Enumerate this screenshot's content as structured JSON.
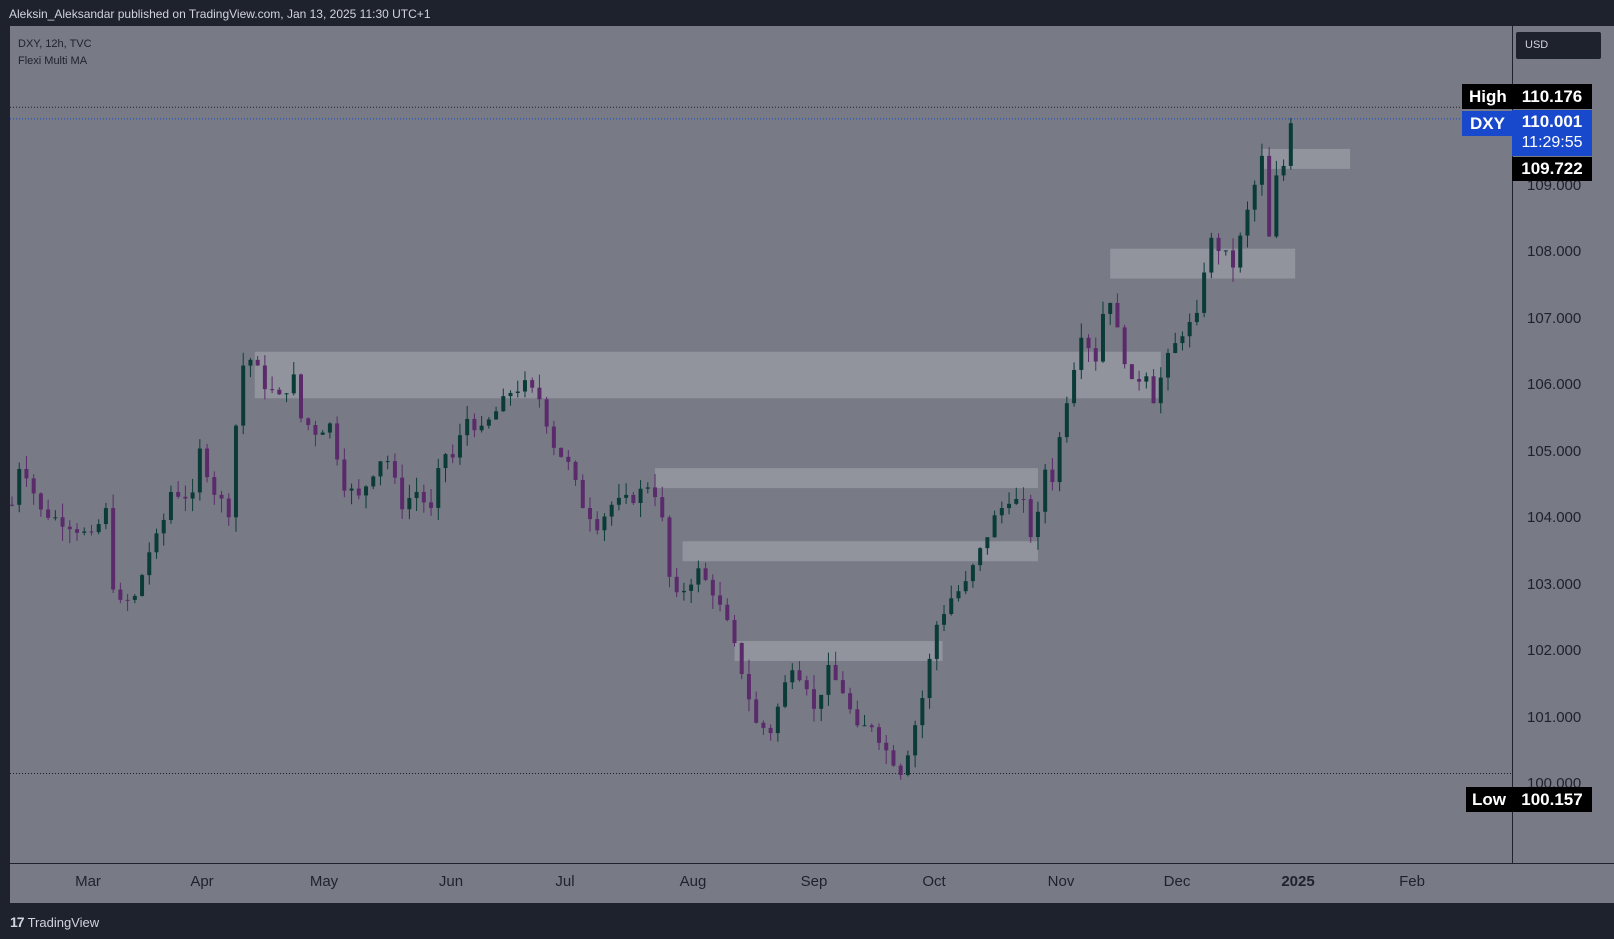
{
  "header": {
    "publisher": "Aleksin_Aleksandar published on TradingView.com, Jan 13, 2025 11:30 UTC+1"
  },
  "legend": {
    "symbol": "DXY, 12h, TVC",
    "indicator": "Flexi Multi MA"
  },
  "currency_button": "USD",
  "footer": {
    "brand": "TradingView"
  },
  "colors": {
    "background": "#787b86",
    "frame": "#1e222d",
    "zone": "#9598a1",
    "badge_blue": "#1848cc",
    "candle_up": "#0b3b37",
    "candle_down": "#5a2a6b"
  },
  "chart_data": {
    "type": "candlestick",
    "symbol": "DXY",
    "interval": "12h",
    "ylim": [
      99.0,
      111.2
    ],
    "y_ticks": [
      "100.000",
      "101.000",
      "102.000",
      "103.000",
      "104.000",
      "105.000",
      "106.000",
      "107.000",
      "108.000",
      "109.000"
    ],
    "x_ticks": [
      "Mar",
      "Apr",
      "May",
      "Jun",
      "Jul",
      "Aug",
      "Sep",
      "Oct",
      "Nov",
      "Dec",
      "2025",
      "Feb"
    ],
    "price_path": [
      [
        0.0,
        104.2
      ],
      [
        0.6,
        104.9
      ],
      [
        2.0,
        104.1
      ],
      [
        4.0,
        103.9
      ],
      [
        5.5,
        103.7
      ],
      [
        6.5,
        104.1
      ],
      [
        7.0,
        103.0
      ],
      [
        7.5,
        102.7
      ],
      [
        8.5,
        102.8
      ],
      [
        9.5,
        103.5
      ],
      [
        10.3,
        103.8
      ],
      [
        11.0,
        104.4
      ],
      [
        12.5,
        104.3
      ],
      [
        13.0,
        105.0
      ],
      [
        14.0,
        104.4
      ],
      [
        15.0,
        104.1
      ],
      [
        15.5,
        105.4
      ],
      [
        16.0,
        106.3
      ],
      [
        16.6,
        106.4
      ],
      [
        17.5,
        106.0
      ],
      [
        18.5,
        105.8
      ],
      [
        19.5,
        106.1
      ],
      [
        20.0,
        105.5
      ],
      [
        21.0,
        105.3
      ],
      [
        22.0,
        105.4
      ],
      [
        23.0,
        104.5
      ],
      [
        24.0,
        104.3
      ],
      [
        25.0,
        104.7
      ],
      [
        25.8,
        105.0
      ],
      [
        27.0,
        104.2
      ],
      [
        28.0,
        104.4
      ],
      [
        29.0,
        104.1
      ],
      [
        29.8,
        105.0
      ],
      [
        30.5,
        104.9
      ],
      [
        31.5,
        105.5
      ],
      [
        32.5,
        105.3
      ],
      [
        33.5,
        105.6
      ],
      [
        34.5,
        105.9
      ],
      [
        35.5,
        106.0
      ],
      [
        36.5,
        105.8
      ],
      [
        37.5,
        105.1
      ],
      [
        38.5,
        104.8
      ],
      [
        39.5,
        104.2
      ],
      [
        40.5,
        103.9
      ],
      [
        41.5,
        104.2
      ],
      [
        43.0,
        104.3
      ],
      [
        44.0,
        104.5
      ],
      [
        44.8,
        104.3
      ],
      [
        45.5,
        103.1
      ],
      [
        46.0,
        102.8
      ],
      [
        47.5,
        103.2
      ],
      [
        48.5,
        102.9
      ],
      [
        49.5,
        102.4
      ],
      [
        50.5,
        101.7
      ],
      [
        51.5,
        100.9
      ],
      [
        52.5,
        100.8
      ],
      [
        53.5,
        101.5
      ],
      [
        54.0,
        101.8
      ],
      [
        55.0,
        101.5
      ],
      [
        55.5,
        101.1
      ],
      [
        56.5,
        101.7
      ],
      [
        57.5,
        101.4
      ],
      [
        58.5,
        100.8
      ],
      [
        59.5,
        100.9
      ],
      [
        60.5,
        100.5
      ],
      [
        61.5,
        100.2
      ],
      [
        62.0,
        100.5
      ],
      [
        63.0,
        101.3
      ],
      [
        64.0,
        102.4
      ],
      [
        65.0,
        102.8
      ],
      [
        66.0,
        103.0
      ],
      [
        67.0,
        103.5
      ],
      [
        68.0,
        104.0
      ],
      [
        69.0,
        104.3
      ],
      [
        70.0,
        104.2
      ],
      [
        70.8,
        103.5
      ],
      [
        71.3,
        104.8
      ],
      [
        72.0,
        104.6
      ],
      [
        73.0,
        105.8
      ],
      [
        74.0,
        106.8
      ],
      [
        75.0,
        106.4
      ],
      [
        75.8,
        107.5
      ],
      [
        76.5,
        106.8
      ],
      [
        77.5,
        106.0
      ],
      [
        78.5,
        106.2
      ],
      [
        79.0,
        105.8
      ],
      [
        80.0,
        106.4
      ],
      [
        81.0,
        106.8
      ],
      [
        82.0,
        107.0
      ],
      [
        82.8,
        108.2
      ],
      [
        83.8,
        108.0
      ],
      [
        84.5,
        107.8
      ],
      [
        85.5,
        108.6
      ],
      [
        86.5,
        109.4
      ],
      [
        87.0,
        108.2
      ],
      [
        87.5,
        109.1
      ],
      [
        88.0,
        109.3
      ],
      [
        88.5,
        110.0
      ],
      [
        88.8,
        110.0
      ]
    ],
    "zones": [
      {
        "x0": 16.8,
        "x1": 79.5,
        "y0": 105.8,
        "y1": 106.5
      },
      {
        "x0": 44.5,
        "x1": 71.0,
        "y0": 104.45,
        "y1": 104.75
      },
      {
        "x0": 46.4,
        "x1": 71.0,
        "y0": 103.35,
        "y1": 103.65
      },
      {
        "x0": 50.0,
        "x1": 64.4,
        "y0": 101.85,
        "y1": 102.15
      },
      {
        "x0": 76.0,
        "x1": 88.8,
        "y0": 107.6,
        "y1": 108.05
      },
      {
        "x0": 86.5,
        "x1": 92.6,
        "y0": 109.25,
        "y1": 109.55
      }
    ],
    "high": {
      "label": "High",
      "value": "110.176"
    },
    "low": {
      "label": "Low",
      "value": "100.157"
    },
    "last": {
      "label": "DXY",
      "value": "110.001",
      "countdown": "11:29:55"
    },
    "bid_level": "109.722"
  }
}
